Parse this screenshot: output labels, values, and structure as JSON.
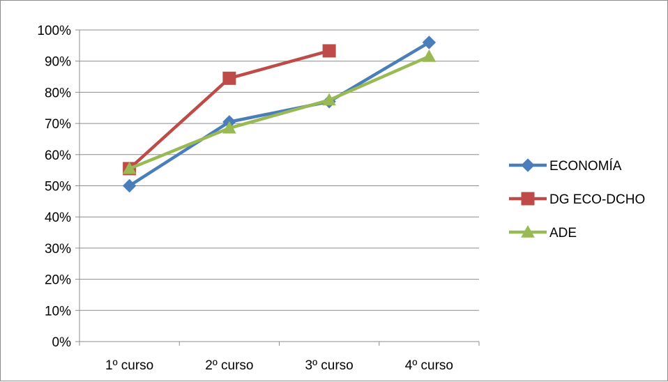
{
  "chart_data": {
    "type": "line",
    "categories": [
      "1º curso",
      "2º curso",
      "3º curso",
      "4º curso"
    ],
    "series": [
      {
        "name": "ECONOMÍA",
        "color": "#4a7ebb",
        "marker": "diamond",
        "values": [
          50,
          70.5,
          77,
          96
        ]
      },
      {
        "name": "DG ECO-DCHO",
        "color": "#be4b48",
        "marker": "square",
        "values": [
          55.5,
          84.5,
          93.3,
          null
        ]
      },
      {
        "name": "ADE",
        "color": "#98b954",
        "marker": "triangle",
        "values": [
          55.5,
          68.5,
          77.5,
          91.5
        ]
      }
    ],
    "y_ticks": [
      "0%",
      "10%",
      "20%",
      "30%",
      "40%",
      "50%",
      "60%",
      "70%",
      "80%",
      "90%",
      "100%"
    ],
    "ylim": [
      0,
      100
    ],
    "y_unit": "%",
    "grid": true,
    "legend_position": "right",
    "title": "",
    "xlabel": "",
    "ylabel": ""
  }
}
